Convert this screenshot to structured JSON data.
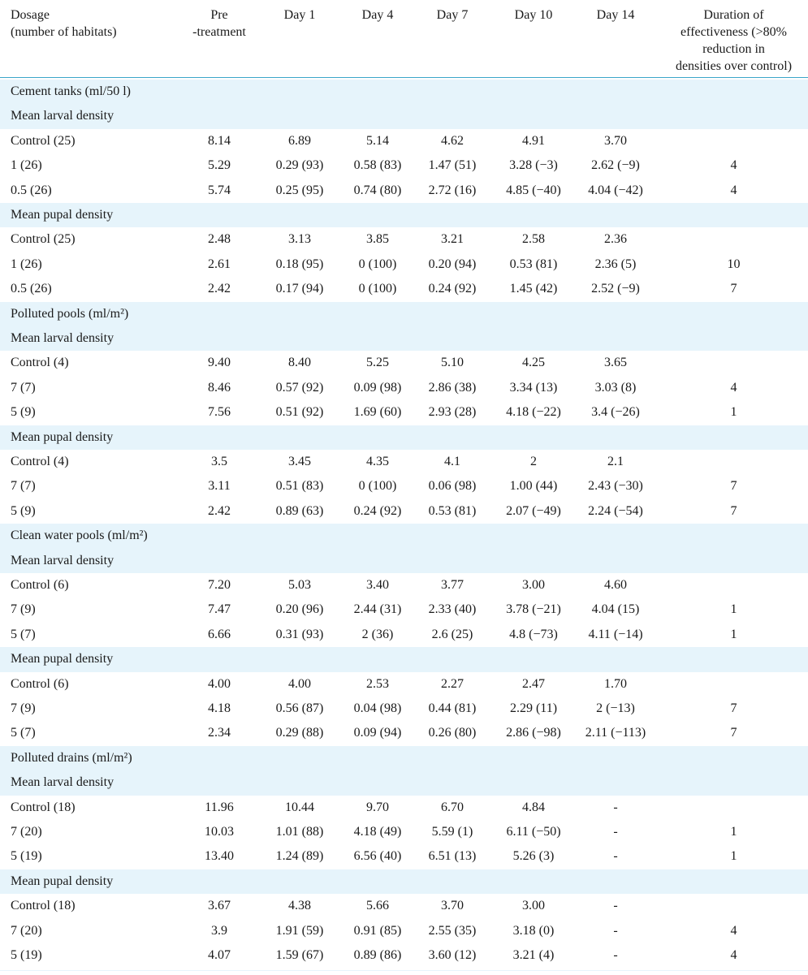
{
  "header": {
    "dosage_line1": "Dosage",
    "dosage_line2": "(number of habitats)",
    "pre_line1": "Pre",
    "pre_line2": "-treatment",
    "day1": "Day 1",
    "day4": "Day 4",
    "day7": "Day 7",
    "day10": "Day 10",
    "day14": "Day 14",
    "dur_line1": "Duration of",
    "dur_line2": "effectiveness (>80%",
    "dur_line3": "reduction in",
    "dur_line4": "densities over control)"
  },
  "rows": [
    {
      "cells": [
        "Cement tanks (ml/50 l)",
        "",
        "",
        "",
        "",
        "",
        "",
        ""
      ]
    },
    {
      "cells": [
        "Mean larval density",
        "",
        "",
        "",
        "",
        "",
        "",
        ""
      ]
    },
    {
      "cells": [
        "Control (25)",
        "8.14",
        "6.89",
        "5.14",
        "4.62",
        "4.91",
        "3.70",
        ""
      ]
    },
    {
      "cells": [
        "1 (26)",
        "5.29",
        "0.29 (93)",
        "0.58 (83)",
        "1.47 (51)",
        "3.28 (−3)",
        "2.62 (−9)",
        "4"
      ]
    },
    {
      "cells": [
        "0.5 (26)",
        "5.74",
        "0.25 (95)",
        "0.74 (80)",
        "2.72 (16)",
        "4.85 (−40)",
        "4.04 (−42)",
        "4"
      ]
    },
    {
      "cells": [
        "Mean pupal density",
        "",
        "",
        "",
        "",
        "",
        "",
        ""
      ]
    },
    {
      "cells": [
        "Control (25)",
        "2.48",
        "3.13",
        "3.85",
        "3.21",
        "2.58",
        "2.36",
        ""
      ]
    },
    {
      "cells": [
        "1 (26)",
        "2.61",
        "0.18 (95)",
        "0 (100)",
        "0.20 (94)",
        "0.53 (81)",
        "2.36 (5)",
        "10"
      ]
    },
    {
      "cells": [
        "0.5 (26)",
        "2.42",
        "0.17 (94)",
        "0 (100)",
        "0.24 (92)",
        "1.45 (42)",
        "2.52 (−9)",
        "7"
      ]
    },
    {
      "cells": [
        "Polluted pools (ml/m²)",
        "",
        "",
        "",
        "",
        "",
        "",
        ""
      ]
    },
    {
      "cells": [
        "Mean larval density",
        "",
        "",
        "",
        "",
        "",
        "",
        ""
      ]
    },
    {
      "cells": [
        "Control (4)",
        "9.40",
        "8.40",
        "5.25",
        "5.10",
        "4.25",
        "3.65",
        ""
      ]
    },
    {
      "cells": [
        "7 (7)",
        "8.46",
        "0.57 (92)",
        "0.09 (98)",
        "2.86 (38)",
        "3.34 (13)",
        "3.03 (8)",
        "4"
      ]
    },
    {
      "cells": [
        "5 (9)",
        "7.56",
        "0.51 (92)",
        "1.69 (60)",
        "2.93 (28)",
        "4.18 (−22)",
        "3.4 (−26)",
        "1"
      ]
    },
    {
      "cells": [
        "Mean pupal density",
        "",
        "",
        "",
        "",
        "",
        "",
        ""
      ]
    },
    {
      "cells": [
        "Control (4)",
        "3.5",
        "3.45",
        "4.35",
        "4.1",
        "2",
        "2.1",
        ""
      ]
    },
    {
      "cells": [
        "7 (7)",
        "3.11",
        "0.51 (83)",
        "0 (100)",
        "0.06 (98)",
        "1.00 (44)",
        "2.43 (−30)",
        "7"
      ]
    },
    {
      "cells": [
        "5 (9)",
        "2.42",
        "0.89 (63)",
        "0.24 (92)",
        "0.53 (81)",
        "2.07 (−49)",
        "2.24 (−54)",
        "7"
      ]
    },
    {
      "cells": [
        "Clean water pools (ml/m²)",
        "",
        "",
        "",
        "",
        "",
        "",
        ""
      ]
    },
    {
      "cells": [
        "Mean larval density",
        "",
        "",
        "",
        "",
        "",
        "",
        ""
      ]
    },
    {
      "cells": [
        "Control (6)",
        "7.20",
        "5.03",
        "3.40",
        "3.77",
        "3.00",
        "4.60",
        ""
      ]
    },
    {
      "cells": [
        "7 (9)",
        "7.47",
        "0.20 (96)",
        "2.44 (31)",
        "2.33 (40)",
        "3.78 (−21)",
        "4.04 (15)",
        "1"
      ]
    },
    {
      "cells": [
        "5 (7)",
        "6.66",
        "0.31 (93)",
        "2 (36)",
        "2.6 (25)",
        "4.8 (−73)",
        "4.11 (−14)",
        "1"
      ]
    },
    {
      "cells": [
        "Mean pupal density",
        "",
        "",
        "",
        "",
        "",
        "",
        ""
      ]
    },
    {
      "cells": [
        "Control (6)",
        "4.00",
        "4.00",
        "2.53",
        "2.27",
        "2.47",
        "1.70",
        ""
      ]
    },
    {
      "cells": [
        "7 (9)",
        "4.18",
        "0.56 (87)",
        "0.04 (98)",
        "0.44 (81)",
        "2.29 (11)",
        "2 (−13)",
        "7"
      ]
    },
    {
      "cells": [
        "5 (7)",
        "2.34",
        "0.29 (88)",
        "0.09 (94)",
        "0.26 (80)",
        "2.86 (−98)",
        "2.11 (−113)",
        "7"
      ]
    },
    {
      "cells": [
        "Polluted drains (ml/m²)",
        "",
        "",
        "",
        "",
        "",
        "",
        ""
      ]
    },
    {
      "cells": [
        "Mean larval density",
        "",
        "",
        "",
        "",
        "",
        "",
        ""
      ]
    },
    {
      "cells": [
        "Control (18)",
        "11.96",
        "10.44",
        "9.70",
        "6.70",
        "4.84",
        "-",
        ""
      ]
    },
    {
      "cells": [
        "7 (20)",
        "10.03",
        "1.01 (88)",
        "4.18 (49)",
        "5.59 (1)",
        "6.11 (−50)",
        "-",
        "1"
      ]
    },
    {
      "cells": [
        "5 (19)",
        "13.40",
        "1.24 (89)",
        "6.56 (40)",
        "6.51 (13)",
        "5.26 (3)",
        "-",
        "1"
      ]
    },
    {
      "cells": [
        "Mean pupal density",
        "",
        "",
        "",
        "",
        "",
        "",
        ""
      ]
    },
    {
      "cells": [
        "Control (18)",
        "3.67",
        "4.38",
        "5.66",
        "3.70",
        "3.00",
        "-",
        ""
      ]
    },
    {
      "cells": [
        "7 (20)",
        "3.9",
        "1.91 (59)",
        "0.91 (85)",
        "2.55 (35)",
        "3.18 (0)",
        "-",
        "4"
      ]
    },
    {
      "cells": [
        "5 (19)",
        "4.07",
        "1.59 (67)",
        "0.89 (86)",
        "3.60 (12)",
        "3.21 (4)",
        "-",
        "4"
      ]
    }
  ]
}
